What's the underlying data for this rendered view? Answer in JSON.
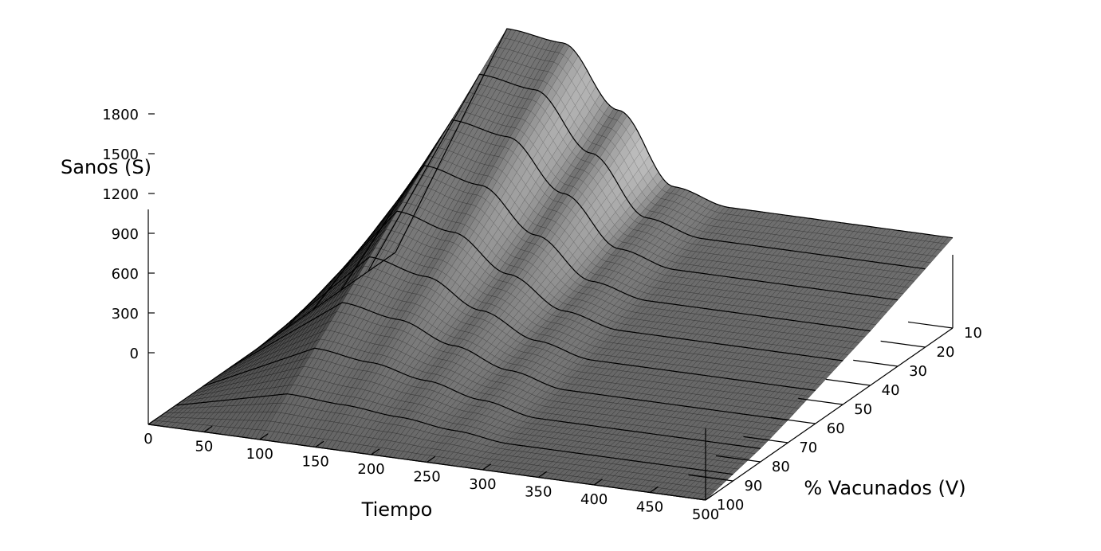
{
  "chart_data": {
    "type": "surface3d",
    "title": "",
    "xlabel": "Tiempo",
    "ylabel": "% Vacunados (V)",
    "zlabel": "Sanos (S)",
    "x_ticks": [
      "0",
      "50",
      "100",
      "150",
      "200",
      "250",
      "300",
      "350",
      "400",
      "450",
      "500"
    ],
    "y_ticks": [
      "10",
      "20",
      "30",
      "40",
      "50",
      "60",
      "70",
      "80",
      "90",
      "100"
    ],
    "z_ticks": [
      "0",
      "300",
      "600",
      "900",
      "1200",
      "1500",
      "1800"
    ],
    "xlim": [
      0,
      500
    ],
    "ylim": [
      10,
      100
    ],
    "zlim": [
      0,
      1800
    ],
    "v_levels": [
      10,
      20,
      30,
      40,
      50,
      60,
      70,
      80,
      90,
      100
    ],
    "series": [
      {
        "v": 10,
        "t": [
          0,
          100,
          150,
          200,
          250,
          300,
          500
        ],
        "s": [
          0,
          1800,
          1750,
          1300,
          780,
          680,
          680
        ]
      },
      {
        "v": 20,
        "t": [
          0,
          100,
          150,
          200,
          250,
          300,
          500
        ],
        "s": [
          0,
          1600,
          1540,
          1120,
          690,
          590,
          590
        ]
      },
      {
        "v": 30,
        "t": [
          0,
          100,
          150,
          200,
          250,
          300,
          500
        ],
        "s": [
          0,
          1400,
          1330,
          960,
          600,
          500,
          500
        ]
      },
      {
        "v": 40,
        "t": [
          0,
          100,
          150,
          200,
          250,
          300,
          500
        ],
        "s": [
          0,
          1200,
          1110,
          790,
          500,
          410,
          410
        ]
      },
      {
        "v": 50,
        "t": [
          0,
          100,
          150,
          200,
          250,
          300,
          500
        ],
        "s": [
          0,
          1000,
          900,
          640,
          420,
          330,
          330
        ]
      },
      {
        "v": 60,
        "t": [
          0,
          100,
          150,
          200,
          250,
          300,
          500
        ],
        "s": [
          0,
          800,
          710,
          510,
          340,
          250,
          250
        ]
      },
      {
        "v": 70,
        "t": [
          0,
          100,
          150,
          200,
          250,
          300,
          500
        ],
        "s": [
          0,
          600,
          530,
          390,
          260,
          170,
          170
        ]
      },
      {
        "v": 80,
        "t": [
          0,
          100,
          150,
          200,
          250,
          300,
          500
        ],
        "s": [
          0,
          400,
          350,
          270,
          180,
          100,
          100
        ]
      },
      {
        "v": 90,
        "t": [
          0,
          100,
          150,
          200,
          250,
          300,
          500
        ],
        "s": [
          0,
          200,
          175,
          140,
          95,
          50,
          50
        ]
      },
      {
        "v": 100,
        "t": [
          0,
          100,
          150,
          200,
          250,
          300,
          500
        ],
        "s": [
          0,
          0,
          0,
          0,
          0,
          0,
          0
        ]
      }
    ],
    "grid": false,
    "legend": "none"
  }
}
